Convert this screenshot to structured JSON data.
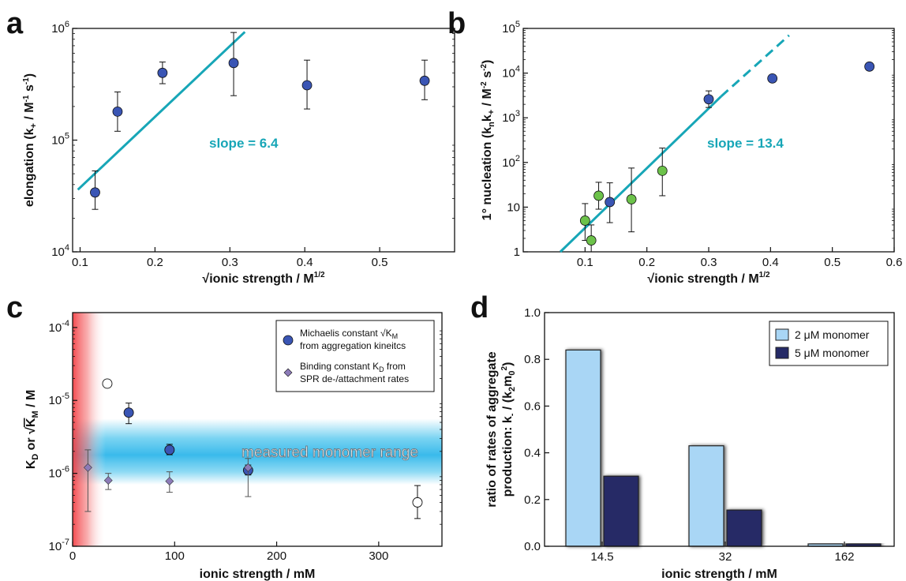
{
  "chart_data": [
    {
      "panel": "a",
      "type": "scatter",
      "xlabel": "√ionic strength / M",
      "xlabel_sup": "1/2",
      "ylabel": "elongation (k+ / M-1 s-1)",
      "yscale": "log",
      "xlim": [
        0.09,
        0.6
      ],
      "ylim": [
        10000,
        1000000
      ],
      "xticks": [
        "0.1",
        "0.2",
        "0.3",
        "0.4",
        "0.5"
      ],
      "yticks": [
        {
          "base": "10",
          "exp": "4",
          "value": 10000
        },
        {
          "base": "10",
          "exp": "5",
          "value": 100000
        },
        {
          "base": "10",
          "exp": "6",
          "value": 1000000
        }
      ],
      "points": [
        {
          "x": 0.12,
          "y": 34000,
          "lo": 24000,
          "hi": 53000
        },
        {
          "x": 0.15,
          "y": 180000,
          "lo": 120000,
          "hi": 270000
        },
        {
          "x": 0.21,
          "y": 400000,
          "lo": 320000,
          "hi": 500000
        },
        {
          "x": 0.305,
          "y": 490000,
          "lo": 250000,
          "hi": 920000
        },
        {
          "x": 0.403,
          "y": 310000,
          "lo": 190000,
          "hi": 520000
        },
        {
          "x": 0.56,
          "y": 340000,
          "lo": 230000,
          "hi": 520000
        }
      ],
      "fit_line": {
        "x1": 0.097,
        "y1": 36000,
        "x2": 0.32,
        "y2": 930000
      },
      "annotation": "slope = 6.4",
      "fit_color": "#17a6b7",
      "marker_color": "#3a55b4"
    },
    {
      "panel": "b",
      "type": "scatter",
      "xlabel": "√ionic strength / M",
      "xlabel_sup": "1/2",
      "ylabel": "1° nucleation (knk+ / M-2 s-2)",
      "yscale": "log",
      "xlim": [
        0,
        0.6
      ],
      "ylim": [
        1,
        100000
      ],
      "xticks": [
        "0.1",
        "0.2",
        "0.3",
        "0.4",
        "0.5",
        "0.6"
      ],
      "yticks": [
        {
          "base": "1",
          "exp": "",
          "value": 1
        },
        {
          "base": "10",
          "exp": "",
          "value": 10
        },
        {
          "base": "10",
          "exp": "2",
          "value": 100
        },
        {
          "base": "10",
          "exp": "3",
          "value": 1000
        },
        {
          "base": "10",
          "exp": "4",
          "value": 10000
        },
        {
          "base": "10",
          "exp": "5",
          "value": 100000
        }
      ],
      "series": [
        {
          "color": "#6cc24a",
          "points": [
            {
              "x": 0.1,
              "y": 5,
              "lo": 1.8,
              "hi": 12
            },
            {
              "x": 0.11,
              "y": 1.8,
              "lo": 1.0,
              "hi": 4
            },
            {
              "x": 0.122,
              "y": 18,
              "lo": 9,
              "hi": 36
            },
            {
              "x": 0.175,
              "y": 15,
              "lo": 2.8,
              "hi": 75
            },
            {
              "x": 0.225,
              "y": 65,
              "lo": 18,
              "hi": 210
            }
          ]
        },
        {
          "color": "#3a55b4",
          "points": [
            {
              "x": 0.14,
              "y": 13,
              "lo": 4.5,
              "hi": 35
            },
            {
              "x": 0.3,
              "y": 2600,
              "lo": 1700,
              "hi": 4000
            },
            {
              "x": 0.403,
              "y": 7600
            },
            {
              "x": 0.56,
              "y": 14000
            }
          ]
        }
      ],
      "fit_line": {
        "x1": 0.06,
        "y1": 1.0,
        "x2": 0.32,
        "y2": 3000
      },
      "fit_line_dashed": {
        "x1": 0.32,
        "y1": 3000,
        "x2": 0.43,
        "y2": 70000
      },
      "annotation": "slope = 13.4",
      "fit_color": "#17a6b7"
    },
    {
      "panel": "c",
      "type": "scatter",
      "xlabel": "ionic strength / mM",
      "ylabel": "KD or √KM / M",
      "yscale": "log",
      "xlim": [
        0,
        362
      ],
      "ylim": [
        1e-07,
        0.00016
      ],
      "xticks": [
        "0",
        "100",
        "200",
        "300"
      ],
      "yticks": [
        {
          "base": "10",
          "exp": "-7",
          "value": 1e-07
        },
        {
          "base": "10",
          "exp": "-6",
          "value": 1e-06
        },
        {
          "base": "10",
          "exp": "-5",
          "value": 1e-05
        },
        {
          "base": "10",
          "exp": "-4",
          "value": 0.0001
        }
      ],
      "band_label": "measured monomer range",
      "band_range": [
        7e-07,
        5.6e-06
      ],
      "legend": [
        {
          "text1": "Michaelis constant √K",
          "sub1": "M",
          "text2": "from aggregation kineitcs"
        },
        {
          "text1": "Binding constant K",
          "sub1": "D",
          "text1b": " from",
          "text2": "SPR de-/attachment rates"
        }
      ],
      "series": [
        {
          "color": "#3a55b4",
          "points": [
            {
              "x": 55,
              "y": 6.8e-06,
              "lo": 4.8e-06,
              "hi": 9.2e-06
            },
            {
              "x": 95,
              "y": 2.1e-06,
              "lo": 1.8e-06,
              "hi": 2.5e-06
            },
            {
              "x": 172,
              "y": 1.1e-06,
              "lo": 9.5e-07,
              "hi": 1.3e-06
            }
          ]
        },
        {
          "color": "#ffffff",
          "points": [
            {
              "x": 34,
              "y": 1.7e-05
            },
            {
              "x": 338,
              "y": 4e-07,
              "lo": 2.4e-07,
              "hi": 6.8e-07
            }
          ]
        },
        {
          "color": "#8c7bb8",
          "marker": "diamond",
          "points": [
            {
              "x": 15,
              "y": 1.2e-06,
              "lo": 3e-07,
              "hi": 2.1e-06
            },
            {
              "x": 35,
              "y": 8e-07,
              "lo": 6e-07,
              "hi": 1e-06
            },
            {
              "x": 95,
              "y": 7.8e-07,
              "lo": 5.5e-07,
              "hi": 1.05e-06
            },
            {
              "x": 172,
              "y": 1.2e-06,
              "lo": 4.8e-07,
              "hi": 1.6e-06
            }
          ]
        }
      ]
    },
    {
      "panel": "d",
      "type": "bar",
      "xlabel": "ionic strength / mM",
      "ylabel_line1": "ratio of rates of aggregate",
      "ylabel_line2": "production: k- / (k2m0²)",
      "categories": [
        "14.5",
        "32",
        "162"
      ],
      "ylim": [
        0,
        1.0
      ],
      "yticks": [
        "0.0",
        "0.2",
        "0.4",
        "0.6",
        "0.8",
        "1.0"
      ],
      "series": [
        {
          "name": "2 μM monomer",
          "values": [
            0.84,
            0.43,
            0.01
          ],
          "color": "#a9d6f5"
        },
        {
          "name": "5 μM monomer",
          "values": [
            0.3,
            0.155,
            0.01
          ],
          "color": "#252a66"
        }
      ]
    }
  ]
}
